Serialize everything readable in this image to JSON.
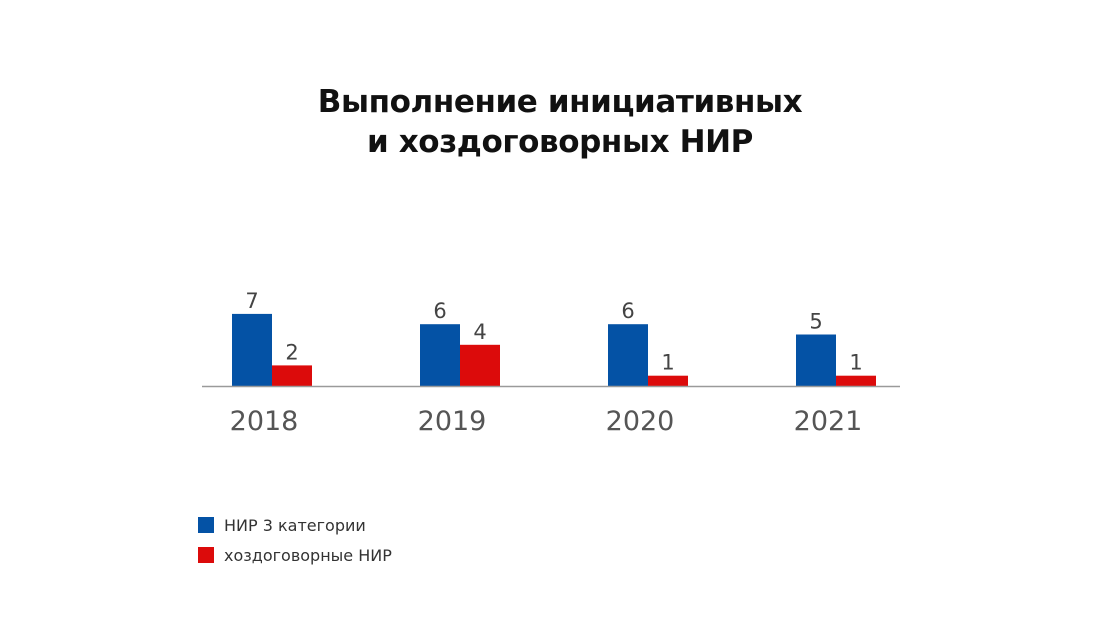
{
  "chart_data": {
    "type": "bar",
    "title_lines": [
      "Выполнение инициативных",
      "и хоздоговорных НИР"
    ],
    "categories": [
      "2018",
      "2019",
      "2020",
      "2021"
    ],
    "series": [
      {
        "name": "НИР 3 категории",
        "values": [
          7,
          6,
          6,
          5
        ],
        "color": "#0452a5"
      },
      {
        "name": "хоздоговорные НИР",
        "values": [
          2,
          4,
          1,
          1
        ],
        "color": "#dc0b0b"
      }
    ],
    "ylim": [
      0,
      7
    ],
    "grid": false,
    "legend_position": "bottom-left",
    "colors": {
      "axis": "#9a9a9a",
      "value_label": "#444444",
      "category_label": "#555555"
    }
  }
}
